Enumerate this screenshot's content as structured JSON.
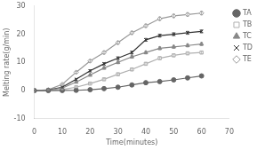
{
  "chart_data": {
    "type": "line",
    "xlabel": "Time(minutes)",
    "ylabel": "Melting rate(g/min)",
    "x": [
      0,
      5,
      10,
      15,
      20,
      25,
      30,
      35,
      40,
      45,
      50,
      55,
      60
    ],
    "xlim": [
      0,
      70
    ],
    "ylim": [
      -10,
      30
    ],
    "xticks": [
      0,
      10,
      20,
      30,
      40,
      50,
      60,
      70
    ],
    "yticks": [
      -10,
      0,
      10,
      20,
      30
    ],
    "grid": false,
    "legend": "right",
    "series": [
      {
        "name": "TA",
        "color": "#666666",
        "marker": "circle",
        "values": [
          0,
          0.0,
          0.05,
          0.1,
          0.3,
          0.7,
          1.2,
          2.0,
          2.8,
          3.2,
          3.8,
          4.5,
          5.2
        ],
        "errors": [
          0.05,
          0.05,
          0.05,
          0.08,
          0.1,
          0.12,
          0.15,
          0.18,
          0.2,
          0.2,
          0.25,
          0.28,
          0.3
        ]
      },
      {
        "name": "TB",
        "color": "#b0b0b0",
        "marker": "square",
        "values": [
          0,
          0.1,
          0.4,
          1.2,
          2.5,
          4.0,
          5.8,
          7.5,
          9.5,
          11.5,
          12.5,
          13.2,
          13.5
        ],
        "errors": [
          0.05,
          0.08,
          0.12,
          0.2,
          0.25,
          0.3,
          0.35,
          0.38,
          0.4,
          0.42,
          0.42,
          0.42,
          0.42
        ]
      },
      {
        "name": "TC",
        "color": "#888888",
        "marker": "triangle",
        "values": [
          0,
          0.15,
          0.9,
          3.0,
          5.5,
          8.0,
          10.0,
          12.0,
          13.5,
          15.0,
          15.5,
          16.0,
          16.5
        ],
        "errors": [
          0.05,
          0.1,
          0.18,
          0.28,
          0.35,
          0.4,
          0.45,
          0.5,
          0.5,
          0.52,
          0.52,
          0.52,
          0.52
        ]
      },
      {
        "name": "TD",
        "color": "#333333",
        "marker": "cross",
        "values": [
          0,
          0.2,
          1.2,
          4.0,
          7.0,
          9.5,
          11.5,
          13.5,
          18.0,
          19.5,
          20.0,
          20.5,
          21.0
        ],
        "errors": [
          0.05,
          0.1,
          0.2,
          0.3,
          0.38,
          0.42,
          0.48,
          0.5,
          0.52,
          0.52,
          0.52,
          0.52,
          0.52
        ]
      },
      {
        "name": "TE",
        "color": "#999999",
        "marker": "diamond",
        "values": [
          0,
          0.3,
          2.2,
          6.5,
          10.5,
          13.5,
          17.0,
          20.5,
          23.0,
          25.5,
          26.5,
          27.0,
          27.5
        ],
        "errors": [
          0.05,
          0.1,
          0.25,
          0.38,
          0.48,
          0.52,
          0.55,
          0.55,
          0.58,
          0.6,
          0.6,
          0.6,
          0.6
        ]
      }
    ]
  }
}
